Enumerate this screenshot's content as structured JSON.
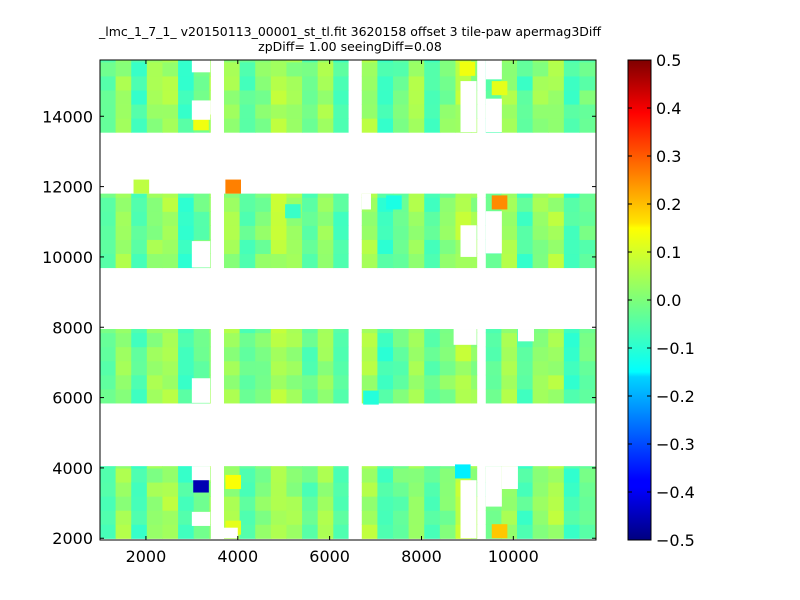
{
  "title": {
    "line1": "_lmc_1_7_1_ v20150113_00001_st_tl.fit 3620158 offset 3 tile-paw apermag3Diff",
    "line2": "zpDiff= 1.00 seeingDiff=0.08"
  },
  "chart_data": {
    "type": "heatmap",
    "title": "_lmc_1_7_1_ v20150113_00001_st_tl.fit 3620158 offset 3 tile-paw apermag3Diff zpDiff= 1.00 seeingDiff=0.08",
    "xlabel": "",
    "ylabel": "",
    "xlim": [
      1000,
      11800
    ],
    "ylim": [
      1950,
      15600
    ],
    "xticks": [
      2000,
      4000,
      6000,
      8000,
      10000
    ],
    "yticks": [
      2000,
      4000,
      6000,
      8000,
      10000,
      12000,
      14000
    ],
    "colorbar": {
      "colormap": "jet",
      "range": [
        -0.5,
        0.5
      ],
      "ticks": [
        0.5,
        0.4,
        0.3,
        0.2,
        0.1,
        0.0,
        -0.1,
        -0.2,
        -0.3,
        -0.4,
        -0.5
      ],
      "tick_labels": [
        "0.5",
        "0.4",
        "0.3",
        "0.2",
        "0.1",
        "0.0",
        "−0.1",
        "−0.2",
        "−0.3",
        "−0.4",
        "−0.5"
      ]
    },
    "grid": false,
    "cell_size": [
      340,
      400
    ],
    "detector_columns": [
      {
        "x0": 1000,
        "x1": 3400
      },
      {
        "x0": 3700,
        "x1": 6400
      },
      {
        "x0": 6700,
        "x1": 9200
      },
      {
        "x0": 9400,
        "x1": 11800
      }
    ],
    "detector_rows": [
      {
        "y0": 2000,
        "y1": 4050
      },
      {
        "y0": 5850,
        "y1": 7950
      },
      {
        "y0": 9700,
        "y1": 11800
      },
      {
        "y0": 13550,
        "y1": 15600
      }
    ],
    "value_model": {
      "column_bias": [
        -0.03,
        0.03,
        -0.05,
        0.02,
        0.04,
        -0.06,
        -0.02,
        0.03,
        -0.04,
        0.0,
        0.05,
        0.02
      ],
      "noise_amplitude": 0.025
    },
    "outliers": [
      {
        "x": 3200,
        "y": 3500,
        "value": -0.45
      },
      {
        "x": 3900,
        "y": 12000,
        "value": 0.25
      },
      {
        "x": 9700,
        "y": 11550,
        "value": 0.24
      },
      {
        "x": 9700,
        "y": 2200,
        "value": 0.18
      },
      {
        "x": 3900,
        "y": 3600,
        "value": 0.12
      },
      {
        "x": 3900,
        "y": 2300,
        "value": 0.1
      },
      {
        "x": 3200,
        "y": 13800,
        "value": 0.11
      },
      {
        "x": 9700,
        "y": 14800,
        "value": 0.1
      },
      {
        "x": 9000,
        "y": 15350,
        "value": 0.11
      },
      {
        "x": 1900,
        "y": 12000,
        "value": 0.06
      },
      {
        "x": 8900,
        "y": 3900,
        "value": -0.14
      },
      {
        "x": 7400,
        "y": 11550,
        "value": -0.1
      },
      {
        "x": 6900,
        "y": 6000,
        "value": -0.09
      },
      {
        "x": 5200,
        "y": 11300,
        "value": -0.07
      }
    ],
    "masked_regions": [
      {
        "x0": 3000,
        "x1": 3400,
        "y0": 4050,
        "y1": 3650
      },
      {
        "x0": 3000,
        "x1": 3400,
        "y0": 2750,
        "y1": 2350
      },
      {
        "x0": 3000,
        "x1": 3400,
        "y0": 6550,
        "y1": 5850
      },
      {
        "x0": 3000,
        "x1": 3400,
        "y0": 10450,
        "y1": 9700
      },
      {
        "x0": 3000,
        "x1": 3400,
        "y0": 15600,
        "y1": 15250
      },
      {
        "x0": 3000,
        "x1": 3400,
        "y0": 14450,
        "y1": 13900
      },
      {
        "x0": 3400,
        "x1": 3700,
        "y0": 14450,
        "y1": 14050
      },
      {
        "x0": 3700,
        "x1": 4000,
        "y0": 2300,
        "y1": 2000
      },
      {
        "x0": 6700,
        "x1": 6900,
        "y0": 11800,
        "y1": 11350
      },
      {
        "x0": 8700,
        "x1": 9200,
        "y0": 7950,
        "y1": 7500
      },
      {
        "x0": 8850,
        "x1": 9200,
        "y0": 10900,
        "y1": 10000
      },
      {
        "x0": 8850,
        "x1": 9200,
        "y0": 3650,
        "y1": 2000
      },
      {
        "x0": 8850,
        "x1": 9200,
        "y0": 15000,
        "y1": 13550
      },
      {
        "x0": 9400,
        "x1": 9750,
        "y0": 11300,
        "y1": 10100
      },
      {
        "x0": 9400,
        "x1": 9750,
        "y0": 4050,
        "y1": 2900
      },
      {
        "x0": 9400,
        "x1": 9750,
        "y0": 15600,
        "y1": 15050
      },
      {
        "x0": 9400,
        "x1": 9750,
        "y0": 14500,
        "y1": 13550
      },
      {
        "x0": 9750,
        "x1": 10100,
        "y0": 4050,
        "y1": 3400
      },
      {
        "x0": 10100,
        "x1": 10450,
        "y0": 7950,
        "y1": 7600
      }
    ]
  }
}
